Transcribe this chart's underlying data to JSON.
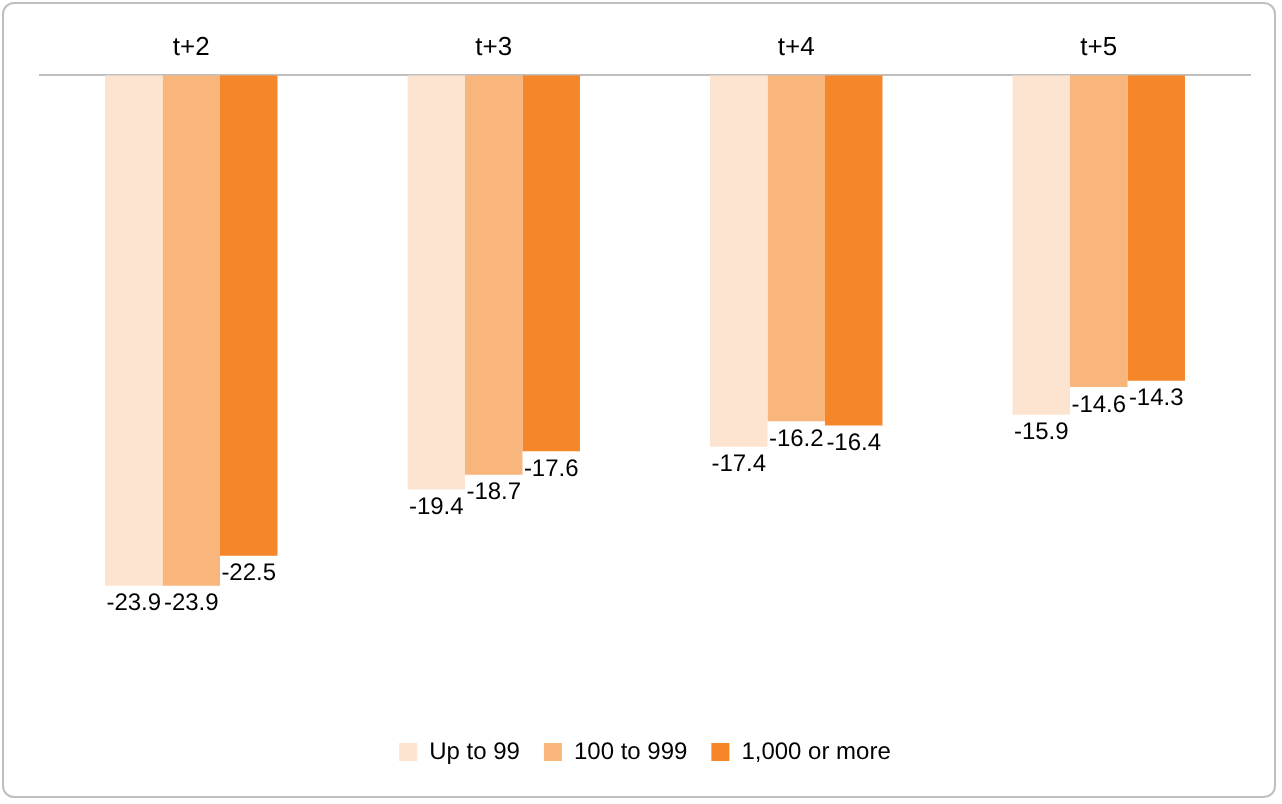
{
  "chart_data": {
    "type": "bar",
    "categories": [
      "t+2",
      "t+3",
      "t+4",
      "t+5"
    ],
    "data_labels": true,
    "legend": "bottom",
    "grid": false,
    "series": [
      {
        "name": "Up to 99",
        "color": "#fde4d0",
        "values": [
          -23.9,
          -19.4,
          -17.4,
          -15.9
        ]
      },
      {
        "name": "100 to 999",
        "color": "#f8b57c",
        "values": [
          -23.9,
          -18.7,
          -16.2,
          -14.6
        ]
      },
      {
        "name": "1,000 or more",
        "color": "#f5862a",
        "values": [
          -22.5,
          -17.6,
          -16.4,
          -14.3
        ]
      }
    ]
  }
}
